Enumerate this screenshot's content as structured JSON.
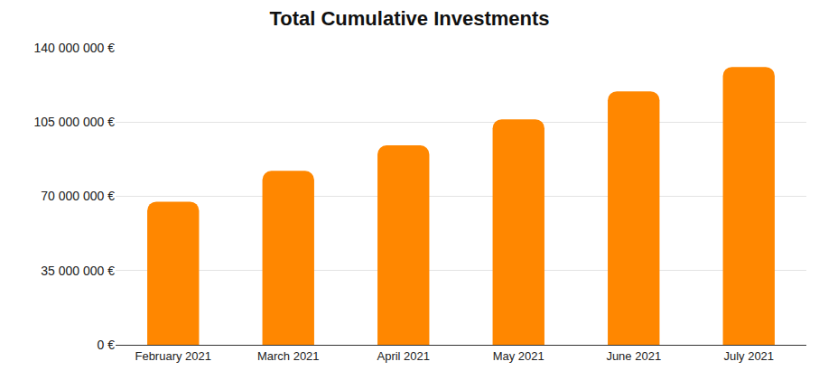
{
  "chart_data": {
    "type": "bar",
    "title": "Total Cumulative Investments",
    "categories": [
      "February 2021",
      "March 2021",
      "April 2021",
      "May 2021",
      "June 2021",
      "July 2021"
    ],
    "values": [
      67500000,
      82000000,
      94000000,
      106300000,
      119500000,
      131000000
    ],
    "color": "#ff8700",
    "ylim": [
      0,
      140000000
    ],
    "yticks": [
      {
        "value": 0,
        "label": "0 €"
      },
      {
        "value": 35000000,
        "label": "35 000 000 €"
      },
      {
        "value": 70000000,
        "label": "70 000 000 €"
      },
      {
        "value": 105000000,
        "label": "105 000 000 €"
      },
      {
        "value": 140000000,
        "label": "140 000 000 €"
      }
    ],
    "grid": true
  }
}
